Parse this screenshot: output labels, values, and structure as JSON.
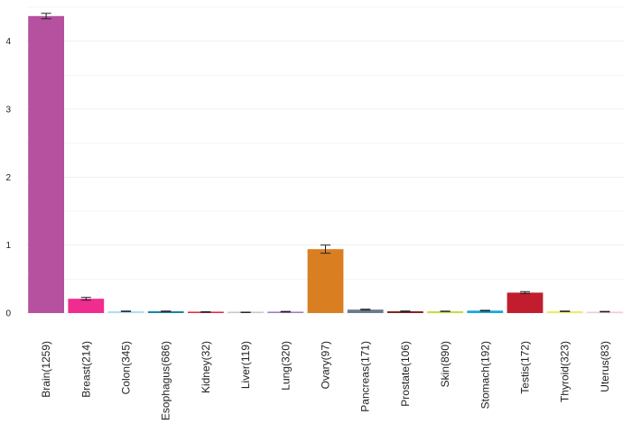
{
  "chart_data": {
    "type": "bar",
    "title": "",
    "xlabel": "",
    "ylabel": "",
    "ylim": [
      0,
      4.5
    ],
    "yticks": [
      0,
      1,
      2,
      3,
      4
    ],
    "grid": true,
    "legend": "none",
    "categories": [
      "Brain(1259)",
      "Breast(214)",
      "Colon(345)",
      "Esophagus(686)",
      "Kidney(32)",
      "Liver(119)",
      "Lung(320)",
      "Ovary(97)",
      "Pancreas(171)",
      "Prostate(106)",
      "Skin(890)",
      "Stomach(192)",
      "Testis(172)",
      "Thyroid(323)",
      "Uterus(83)"
    ],
    "values": [
      4.37,
      0.21,
      0.025,
      0.025,
      0.015,
      0.01,
      0.02,
      0.94,
      0.05,
      0.025,
      0.025,
      0.035,
      0.3,
      0.025,
      0.02
    ],
    "errors": [
      0.04,
      0.02,
      0.004,
      0.004,
      0.004,
      0.003,
      0.004,
      0.06,
      0.006,
      0.005,
      0.003,
      0.005,
      0.015,
      0.004,
      0.004
    ],
    "colors": [
      "#b5519e",
      "#f02c8e",
      "#a9dff0",
      "#0f7fa1",
      "#e02a42",
      "#c8c8c8",
      "#9d7cb8",
      "#d97f22",
      "#677a8e",
      "#7f1a17",
      "#c9d937",
      "#11a6dc",
      "#c11d2e",
      "#f1ea5b",
      "#f7c8d8"
    ]
  }
}
